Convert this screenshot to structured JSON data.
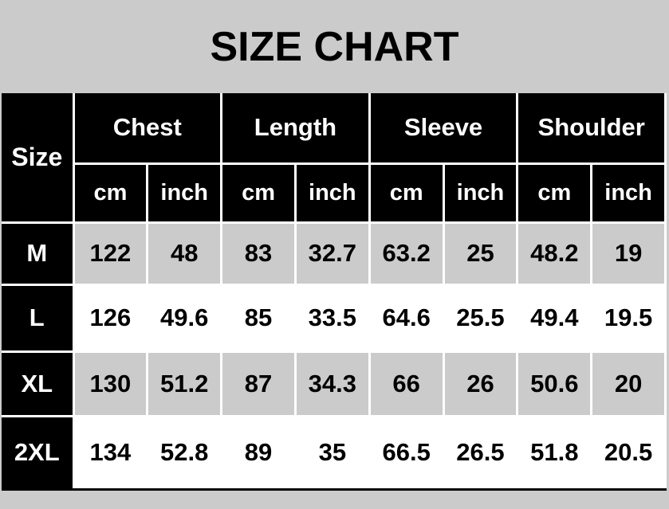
{
  "title": "SIZE CHART",
  "table": {
    "size_header": "Size",
    "groups": [
      {
        "label": "Chest"
      },
      {
        "label": "Length"
      },
      {
        "label": "Sleeve"
      },
      {
        "label": "Shoulder"
      }
    ],
    "unit_headers": [
      "cm",
      "inch",
      "cm",
      "inch",
      "cm",
      "inch",
      "cm",
      "inch"
    ],
    "rows": [
      {
        "size": "M",
        "values": [
          "122",
          "48",
          "83",
          "32.7",
          "63.2",
          "25",
          "48.2",
          "19"
        ]
      },
      {
        "size": "L",
        "values": [
          "126",
          "49.6",
          "85",
          "33.5",
          "64.6",
          "25.5",
          "49.4",
          "19.5"
        ]
      },
      {
        "size": "XL",
        "values": [
          "130",
          "51.2",
          "87",
          "34.3",
          "66",
          "26",
          "50.6",
          "20"
        ]
      },
      {
        "size": "2XL",
        "values": [
          "134",
          "52.8",
          "89",
          "35",
          "66.5",
          "26.5",
          "51.8",
          "20.5"
        ]
      }
    ]
  },
  "colors": {
    "background": "#cbcbcb",
    "header_bg": "#000000",
    "header_text": "#ffffff",
    "row_alt_bg": "#cbcbcb",
    "row_bg": "#ffffff",
    "grid": "#ffffff",
    "bottom_border": "#000000",
    "text": "#000000"
  }
}
